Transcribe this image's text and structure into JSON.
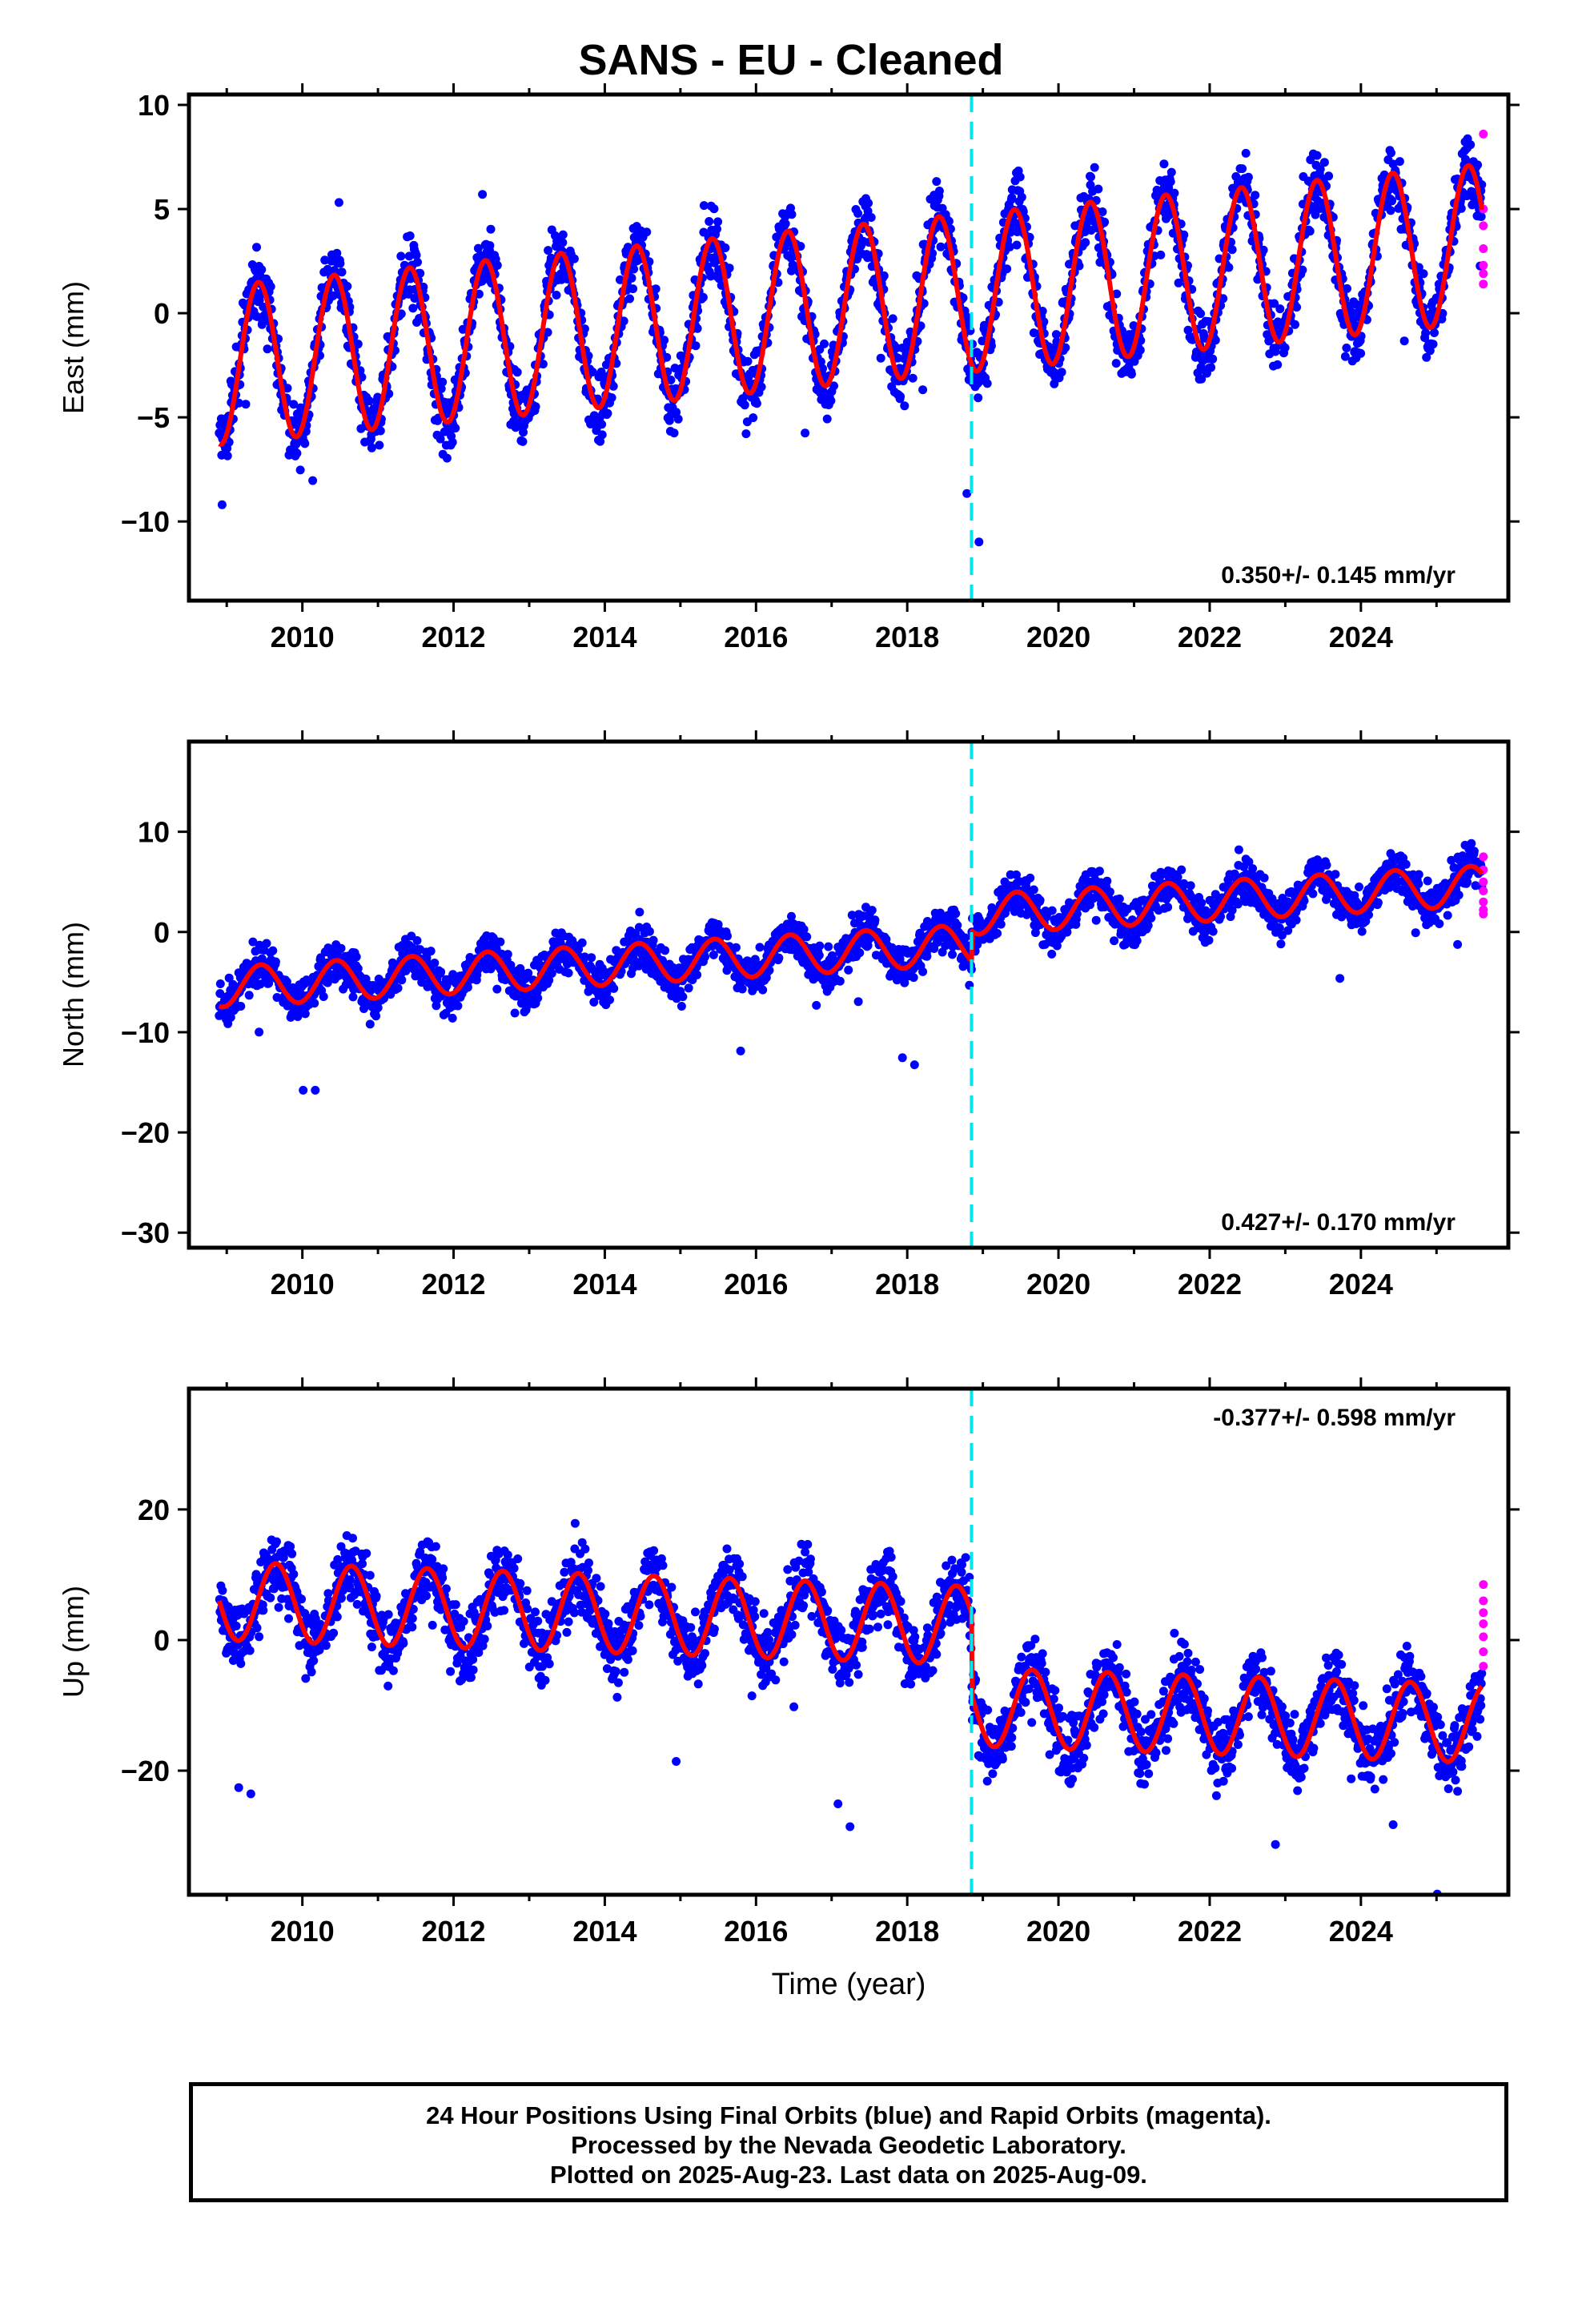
{
  "title": "SANS  - EU - Cleaned",
  "footer": {
    "line1": "24 Hour Positions Using Final Orbits (blue) and Rapid Orbits (magenta).",
    "line2": "Processed by the Nevada Geodetic Laboratory.",
    "line3": "Plotted on 2025-Aug-23. Last data on 2025-Aug-09."
  },
  "colors": {
    "final_orbits": "#0000ff",
    "rapid_orbits": "#ff00ff",
    "model": "#ff0000",
    "equipment_change": "#00e5ee"
  },
  "chart_data": [
    {
      "type": "scatter",
      "component": "east",
      "ylabel": "East (mm)",
      "xlabel": "",
      "xlim": [
        2008.5,
        2025.95
      ],
      "ylim": [
        -13.8,
        10.5
      ],
      "xticks": [
        2010,
        2012,
        2014,
        2016,
        2018,
        2020,
        2022,
        2024
      ],
      "yticks": [
        -10,
        -5,
        0,
        5,
        10
      ],
      "rate_text": "0.350+/- 0.145 mm/yr",
      "rate_position": "bottom-right",
      "step_epoch": 2018.85,
      "data_span": [
        2008.9,
        2025.6
      ],
      "model": {
        "offset_at_start": -2.5,
        "rate_mm_per_yr": 0.35,
        "annual_amplitude": 3.8,
        "annual_peak_phase": 0.42,
        "noise_sigma": 1.5,
        "steps": []
      },
      "rapid_orbit_values": [
        8.6,
        5.0,
        4.2,
        3.1,
        2.3,
        1.9,
        1.4
      ]
    },
    {
      "type": "scatter",
      "component": "north",
      "ylabel": "North (mm)",
      "xlabel": "",
      "xlim": [
        2008.5,
        2025.95
      ],
      "ylim": [
        -31.5,
        19.0
      ],
      "xticks": [
        2010,
        2012,
        2014,
        2016,
        2018,
        2020,
        2022,
        2024
      ],
      "yticks": [
        -30,
        -20,
        -10,
        0,
        10
      ],
      "rate_text": "0.427+/- 0.170 mm/yr",
      "rate_position": "bottom-right",
      "step_epoch": 2018.85,
      "data_span": [
        2008.9,
        2025.6
      ],
      "model": {
        "offset_at_start": -5.5,
        "rate_mm_per_yr": 0.427,
        "annual_amplitude": 2.0,
        "annual_peak_phase": 0.45,
        "noise_sigma": 1.9,
        "steps": [
          {
            "epoch": 2018.85,
            "size": 3.0
          }
        ]
      },
      "rapid_orbit_values": [
        7.5,
        6.2,
        5.0,
        4.1,
        3.0,
        2.2,
        1.8
      ]
    },
    {
      "type": "scatter",
      "component": "up",
      "ylabel": "Up (mm)",
      "xlabel": "Time (year)",
      "xlim": [
        2008.5,
        2025.95
      ],
      "ylim": [
        -39.0,
        38.5
      ],
      "xticks": [
        2010,
        2012,
        2014,
        2016,
        2018,
        2020,
        2022,
        2024
      ],
      "yticks": [
        -20,
        0,
        20
      ],
      "rate_text": "-0.377+/- 0.598 mm/yr",
      "rate_position": "top-right",
      "step_epoch": 2018.85,
      "data_span": [
        2008.9,
        2025.6
      ],
      "model": {
        "offset_at_start": 6.0,
        "rate_mm_per_yr": -0.377,
        "annual_amplitude": 6.0,
        "annual_peak_phase": 0.65,
        "noise_sigma": 4.8,
        "steps": [
          {
            "epoch": 2018.85,
            "size": -12.5
          }
        ]
      },
      "rapid_orbit_values": [
        8.5,
        6.0,
        4.2,
        2.5,
        0.5,
        -1.8,
        -4.0
      ]
    }
  ]
}
